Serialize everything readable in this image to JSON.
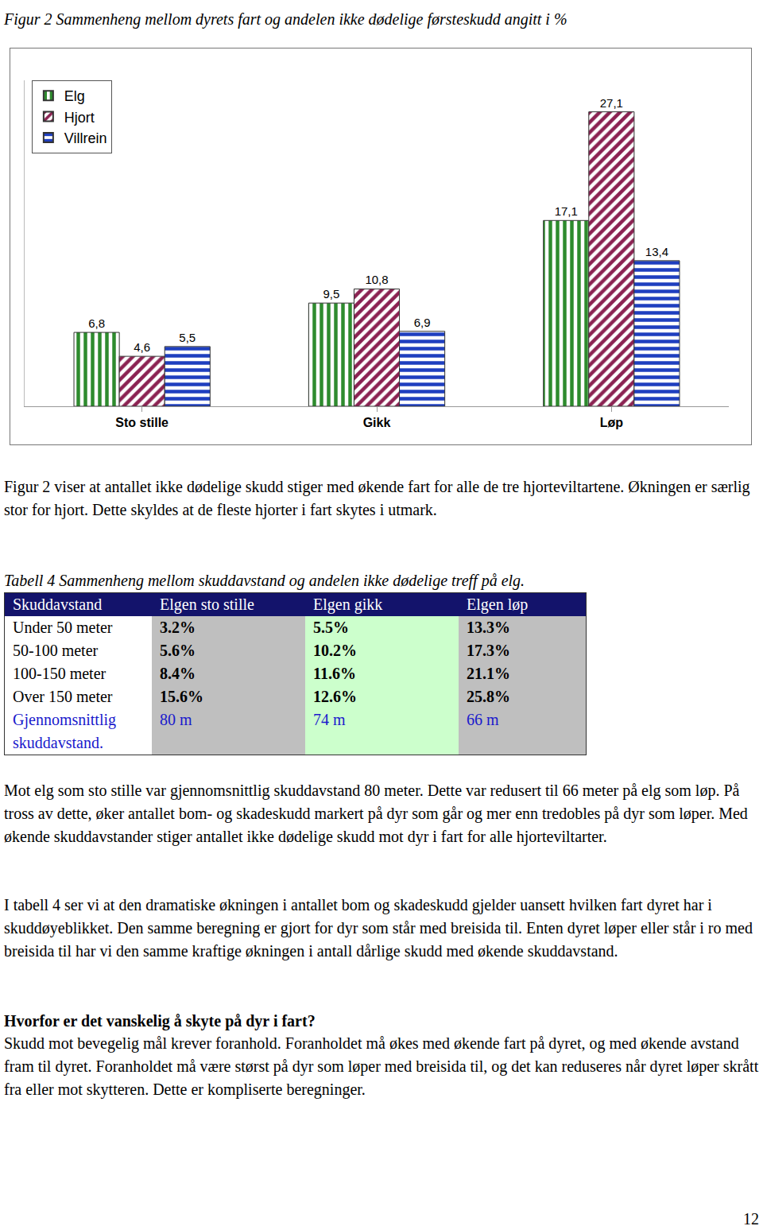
{
  "figure_caption": "Figur 2 Sammenheng mellom dyrets fart og andelen ikke dødelige førsteskudd angitt i %",
  "chart_data": {
    "type": "bar",
    "categories": [
      "Sto stille",
      "Gikk",
      "Løp"
    ],
    "series": [
      {
        "name": "Elg",
        "color": "#2e8b2e",
        "marker": "vertical_stripes",
        "values": [
          6.8,
          9.5,
          17.1
        ],
        "value_labels": [
          "6,8",
          "9,5",
          "17,1"
        ]
      },
      {
        "name": "Hjort",
        "color": "#8b2252",
        "marker": "diagonal_stripes",
        "values": [
          4.6,
          10.8,
          27.1
        ],
        "value_labels": [
          "4,6",
          "10,8",
          "27,1"
        ]
      },
      {
        "name": "Villrein",
        "color": "#1f3fbf",
        "marker": "horizontal_stripes",
        "values": [
          5.5,
          6.9,
          13.4
        ],
        "value_labels": [
          "5,5",
          "6,9",
          "13,4"
        ]
      }
    ],
    "ylim": [
      0,
      30
    ],
    "tick_labels": "x",
    "grid": false,
    "legend": "upper left",
    "data_labels": true
  },
  "paragraph_1": "Figur 2 viser at antallet ikke dødelige skudd stiger med økende fart for alle de tre hjorteviltartene. Økningen er særlig stor for hjort. Dette skyldes at de fleste hjorter i fart skytes i utmark.",
  "table": {
    "caption": "Tabell 4 Sammenheng mellom skuddavstand og andelen ikke dødelige treff på elg.",
    "header": [
      "Skuddavstand",
      "Elgen sto stille",
      "Elgen gikk",
      "Elgen løp"
    ],
    "rows": [
      [
        "Under 50 meter",
        "3.2%",
        "5.5%",
        "13.3%"
      ],
      [
        "50-100 meter",
        "5.6%",
        "10.2%",
        "17.3%"
      ],
      [
        "100-150 meter",
        "8.4%",
        "11.6%",
        "21.1%"
      ],
      [
        "Over 150 meter",
        "15.6%",
        "12.6%",
        "25.8%"
      ],
      [
        "Gjennomsnittlig skuddavstand.",
        "80 m",
        "74 m",
        "66 m"
      ]
    ]
  },
  "paragraph_2": "Mot elg som sto stille var gjennomsnittlig skuddavstand 80 meter. Dette var redusert til 66 meter på elg som løp. På tross av dette, øker antallet bom- og skadeskudd markert på dyr som går og mer enn tredobles på dyr som løper.  Med økende skuddavstander stiger antallet ikke dødelige skudd mot dyr i fart for alle hjorteviltarter.",
  "paragraph_3": "I tabell 4 ser vi at den dramatiske økningen i antallet bom og skadeskudd gjelder uansett hvilken fart dyret har i skuddøyeblikket. Den samme beregning er gjort for dyr som står med breisida til. Enten dyret løper eller står i ro med breisida til har vi den samme kraftige økningen i antall dårlige skudd med økende skuddavstand.",
  "heading": "Hvorfor er det vanskelig å skyte på dyr i fart?",
  "paragraph_4": "Skudd mot bevegelig mål krever foranhold. Foranholdet må økes med økende fart på dyret, og med økende avstand fram til dyret. Foranholdet må være størst på dyr som løper med breisida til, og det kan reduseres når dyret løper skrått fra eller mot skytteren. Dette er kompliserte beregninger.",
  "page_number": "12"
}
